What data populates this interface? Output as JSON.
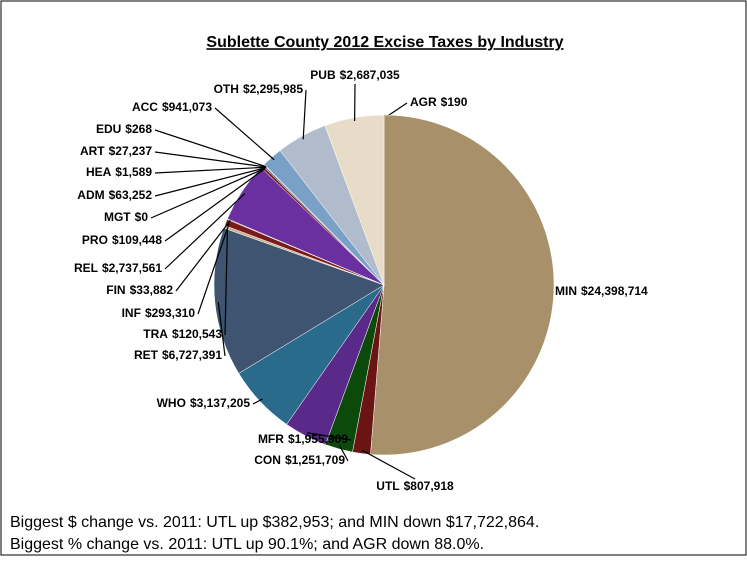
{
  "chart_data": {
    "type": "pie",
    "title": "Sublette County 2012 Excise Taxes by Industry",
    "categories": [
      "AGR",
      "MIN",
      "UTL",
      "CON",
      "MFR",
      "WHO",
      "RET",
      "TRA",
      "INF",
      "FIN",
      "REL",
      "PRO",
      "MGT",
      "ADM",
      "HEA",
      "ART",
      "EDU",
      "ACC",
      "OTH",
      "PUB"
    ],
    "values": [
      190,
      24398714,
      807918,
      1251709,
      1955909,
      3137205,
      6727391,
      120543,
      293310,
      33882,
      2737561,
      109448,
      0,
      63252,
      1589,
      27237,
      268,
      941073,
      2295985,
      2687035
    ],
    "value_labels": [
      "$190",
      "$24,398,714",
      "$807,918",
      "$1,251,709",
      "$1,955,909",
      "$3,137,205",
      "$6,727,391",
      "$120,543",
      "$293,310",
      "$33,882",
      "$2,737,561",
      "$109,448",
      "$0",
      "$63,252",
      "$1,589",
      "$27,237",
      "$268",
      "$941,073",
      "$2,295,985",
      "$2,687,035"
    ],
    "colors": [
      "#c8b08a",
      "#a8916a",
      "#6b1414",
      "#0c4a0c",
      "#5a2a8a",
      "#2a6a8a",
      "#3e5470",
      "#c8b08a",
      "#7a1a1a",
      "#1a5a1a",
      "#6a30a0",
      "#7a1a1a",
      "#1a5a1a",
      "#3e5470",
      "#2a6a8a",
      "#5a2a8a",
      "#a8916a",
      "#7aa0c8",
      "#b0bccc",
      "#e8dcc8"
    ],
    "annotations": [
      "Biggest $ change vs. 2011: UTL up $382,953; and MIN down $17,722,864.",
      "Biggest % change vs. 2011: UTL up 90.1%; and AGR down 88.0%."
    ]
  }
}
